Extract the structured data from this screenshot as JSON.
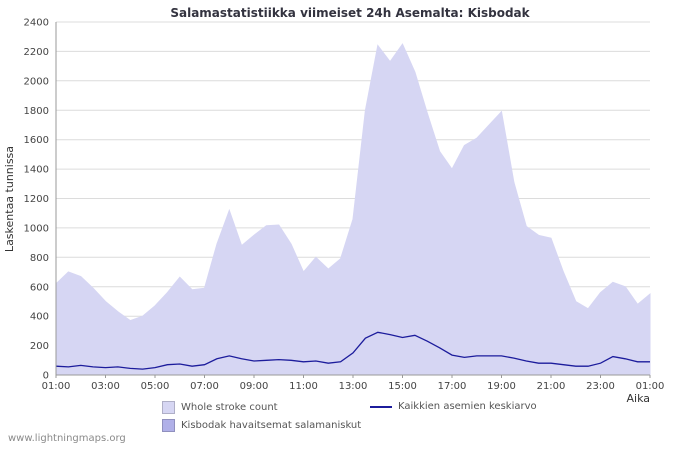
{
  "title": "Salamastatistiikka viimeiset 24h Asemalta: Kisbodak",
  "y_axis_title": "Laskentaa tunnissa",
  "x_axis_title": "Aika",
  "watermark": "www.lightningmaps.org",
  "colors": {
    "area_fill": "#d6d6f3",
    "area_fill_dark": "#b0b0e8",
    "line": "#1c1c9c",
    "grid": "#dcdcdc",
    "axis": "#999999",
    "axis_text": "#444444",
    "title_text": "#33333f",
    "legend_text": "#555555",
    "watermark_text": "#8a8a8a"
  },
  "legend": [
    {
      "label": "Whole stroke count",
      "type": "area",
      "color": "#d6d6f3"
    },
    {
      "label": "Kisbodak havaitsemat salamaniskut",
      "type": "area",
      "color": "#b0b0e8"
    },
    {
      "label": "Kaikkien asemien keskiarvo",
      "type": "line",
      "color": "#1c1c9c"
    }
  ],
  "chart_data": {
    "type": "area",
    "title": "Salamastatistiikka viimeiset 24h Asemalta: Kisbodak",
    "xlabel": "Aika",
    "ylabel": "Laskentaa tunnissa",
    "xlim": [
      1,
      25
    ],
    "ylim": [
      0,
      2400
    ],
    "grid": "horizontal",
    "legend_position": "bottom",
    "x_ticks": [
      "01:00",
      "03:00",
      "05:00",
      "07:00",
      "09:00",
      "11:00",
      "13:00",
      "15:00",
      "17:00",
      "19:00",
      "21:00",
      "23:00",
      "01:00"
    ],
    "y_ticks": [
      0,
      200,
      400,
      600,
      800,
      1000,
      1200,
      1400,
      1600,
      1800,
      2000,
      2200,
      2400
    ],
    "x_start_hour": 1,
    "x_step_hours": 0.5,
    "series": [
      {
        "name": "Whole stroke count",
        "style": "area",
        "color": "#d6d6f3",
        "values": [
          620,
          700,
          670,
          590,
          500,
          430,
          370,
          400,
          470,
          560,
          665,
          580,
          590,
          890,
          1120,
          880,
          950,
          1015,
          1020,
          890,
          700,
          800,
          720,
          790,
          1060,
          1800,
          2240,
          2130,
          2250,
          2060,
          1780,
          1520,
          1400,
          1560,
          1610,
          1700,
          1790,
          1310,
          1010,
          950,
          930,
          700,
          500,
          450,
          560,
          630,
          600,
          480,
          550
        ]
      },
      {
        "name": "Kaikkien asemien keskiarvo",
        "style": "line",
        "color": "#1c1c9c",
        "values": [
          60,
          55,
          65,
          55,
          50,
          55,
          45,
          40,
          50,
          70,
          75,
          60,
          70,
          110,
          130,
          110,
          95,
          100,
          105,
          100,
          90,
          95,
          80,
          90,
          150,
          250,
          290,
          275,
          255,
          270,
          230,
          185,
          135,
          120,
          130,
          130,
          130,
          115,
          95,
          80,
          80,
          70,
          60,
          60,
          80,
          125,
          110,
          90,
          90
        ]
      }
    ]
  }
}
